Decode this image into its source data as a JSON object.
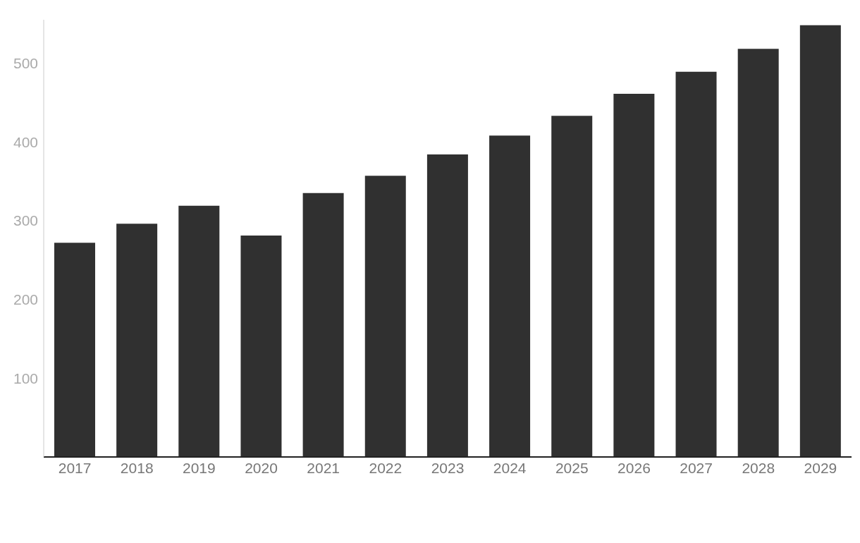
{
  "chart_data": {
    "type": "bar",
    "categories": [
      "2017",
      "2018",
      "2019",
      "2020",
      "2021",
      "2022",
      "2023",
      "2024",
      "2025",
      "2026",
      "2027",
      "2028",
      "2029"
    ],
    "values": [
      272,
      296,
      319,
      281,
      335,
      357,
      384,
      408,
      433,
      461,
      489,
      518,
      548
    ],
    "color": "#303030",
    "ylim": [
      0,
      555
    ],
    "yticks": [
      100,
      200,
      300,
      400,
      500
    ],
    "grid": false,
    "legend": false
  }
}
